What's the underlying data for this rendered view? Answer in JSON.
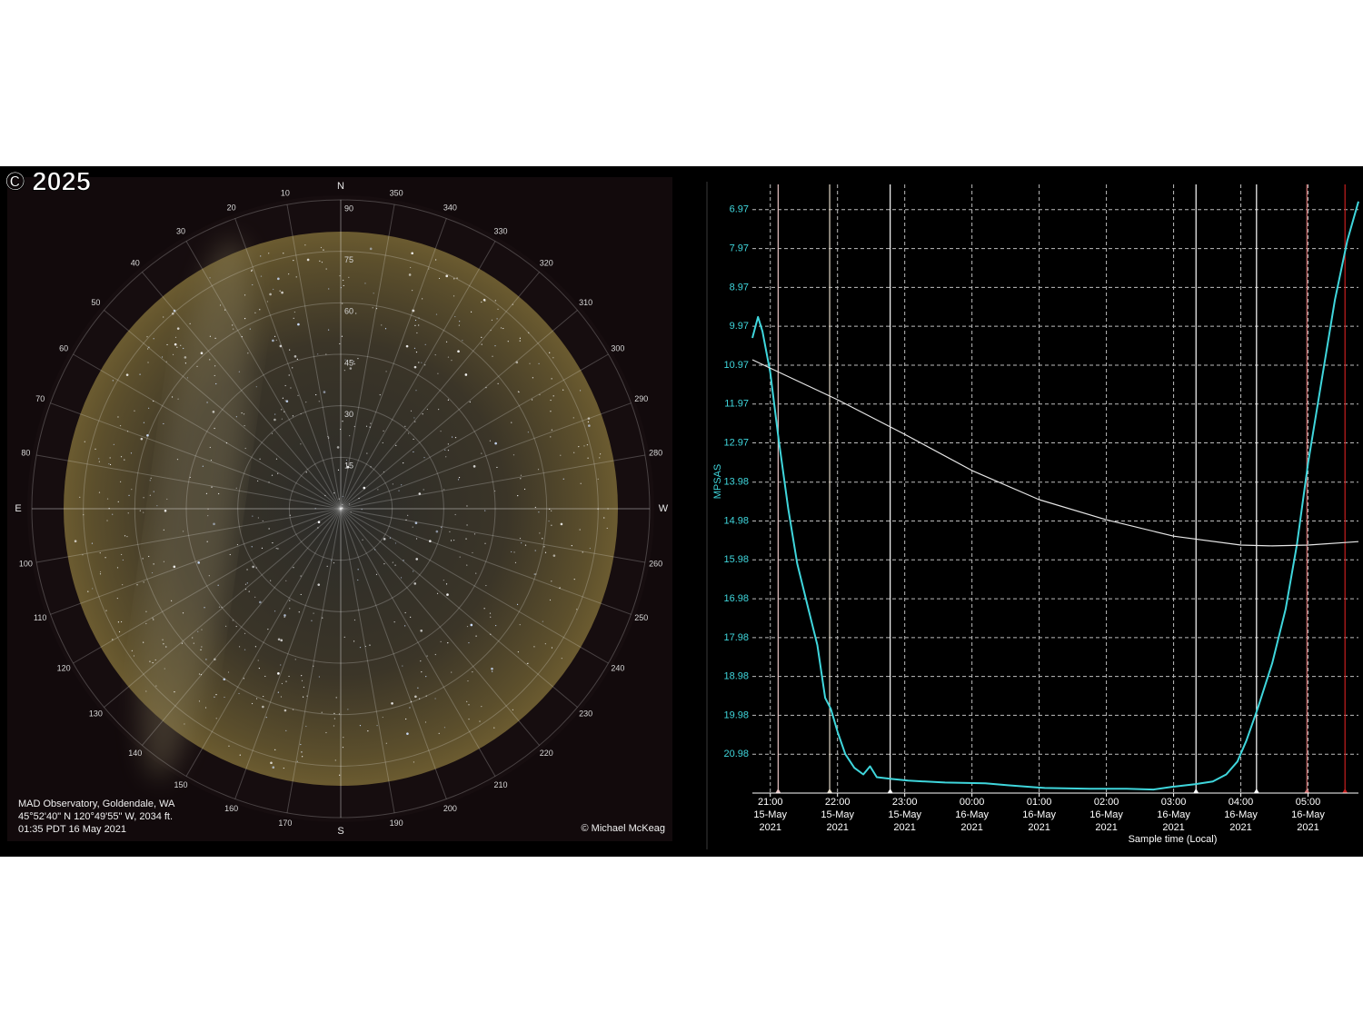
{
  "watermark": "© 2025",
  "sky_map": {
    "cardinals": [
      {
        "label": "N",
        "azimuth": 0
      },
      {
        "label": "E",
        "azimuth": 90
      },
      {
        "label": "S",
        "azimuth": 180
      },
      {
        "label": "W",
        "azimuth": 270
      }
    ],
    "azimuth_labels": [
      10,
      20,
      30,
      40,
      50,
      60,
      70,
      80,
      100,
      110,
      120,
      130,
      140,
      150,
      160,
      170,
      190,
      200,
      210,
      220,
      230,
      240,
      250,
      260,
      280,
      290,
      300,
      310,
      320,
      330,
      340,
      350
    ],
    "altitude_labels": [
      15,
      30,
      45,
      60,
      75,
      90
    ],
    "caption": [
      "MAD Observatory, Goldendale, WA",
      "45°52'40\" N 120°49'55\" W, 2034 ft.",
      "01:35 PDT 16 May 2021"
    ],
    "credit": "© Michael McKeag"
  },
  "chart_data": {
    "type": "line",
    "y_label": "MPSAS",
    "x_label": "Sample time (Local)",
    "ylim": [
      6.32,
      21.98
    ],
    "y_reversed": true,
    "yticks": [
      6.97,
      7.97,
      8.97,
      9.97,
      10.97,
      11.97,
      12.97,
      13.98,
      14.98,
      15.98,
      16.98,
      17.98,
      18.98,
      19.98,
      20.98
    ],
    "xlim": [
      "2021-05-15T20:44",
      "2021-05-16T05:45"
    ],
    "xticks": [
      {
        "value": "2021-05-15T21:00",
        "label": [
          "21:00",
          "15-May",
          "2021"
        ]
      },
      {
        "value": "2021-05-15T22:00",
        "label": [
          "22:00",
          "15-May",
          "2021"
        ]
      },
      {
        "value": "2021-05-15T23:00",
        "label": [
          "23:00",
          "15-May",
          "2021"
        ]
      },
      {
        "value": "2021-05-16T00:00",
        "label": [
          "00:00",
          "16-May",
          "2021"
        ]
      },
      {
        "value": "2021-05-16T01:00",
        "label": [
          "01:00",
          "16-May",
          "2021"
        ]
      },
      {
        "value": "2021-05-16T02:00",
        "label": [
          "02:00",
          "16-May",
          "2021"
        ]
      },
      {
        "value": "2021-05-16T03:00",
        "label": [
          "03:00",
          "16-May",
          "2021"
        ]
      },
      {
        "value": "2021-05-16T04:00",
        "label": [
          "04:00",
          "16-May",
          "2021"
        ]
      },
      {
        "value": "2021-05-16T05:00",
        "label": [
          "05:00",
          "16-May",
          "2021"
        ]
      }
    ],
    "grid": true,
    "series": [
      {
        "color": "#3fd6dc",
        "x": [
          "2021-05-15T20:44",
          "2021-05-15T20:49",
          "2021-05-15T20:53",
          "2021-05-15T21:00",
          "2021-05-15T21:07",
          "2021-05-15T21:16",
          "2021-05-15T21:24",
          "2021-05-15T21:34",
          "2021-05-15T21:42",
          "2021-05-15T21:49",
          "2021-05-15T21:54",
          "2021-05-15T22:00",
          "2021-05-15T22:07",
          "2021-05-15T22:15",
          "2021-05-15T22:23",
          "2021-05-15T22:29",
          "2021-05-15T22:35",
          "2021-05-15T22:47",
          "2021-05-15T23:03",
          "2021-05-15T23:36",
          "2021-05-16T00:12",
          "2021-05-16T00:32",
          "2021-05-16T01:05",
          "2021-05-16T01:45",
          "2021-05-16T02:18",
          "2021-05-16T02:42",
          "2021-05-16T02:58",
          "2021-05-16T03:19",
          "2021-05-16T03:35",
          "2021-05-16T03:47",
          "2021-05-16T03:57",
          "2021-05-16T04:05",
          "2021-05-16T04:15",
          "2021-05-16T04:28",
          "2021-05-16T04:40",
          "2021-05-16T04:50",
          "2021-05-16T05:00",
          "2021-05-16T05:12",
          "2021-05-16T05:24",
          "2021-05-16T05:35",
          "2021-05-16T05:45"
        ],
        "values": [
          10.27,
          9.73,
          10.1,
          11.16,
          12.79,
          14.67,
          16.07,
          17.24,
          18.17,
          19.53,
          19.81,
          20.4,
          20.98,
          21.33,
          21.5,
          21.29,
          21.57,
          21.61,
          21.66,
          21.71,
          21.73,
          21.78,
          21.85,
          21.87,
          21.87,
          21.89,
          21.82,
          21.75,
          21.68,
          21.5,
          21.17,
          20.63,
          19.81,
          18.64,
          17.24,
          15.6,
          13.5,
          11.39,
          9.29,
          7.77,
          6.76
        ]
      },
      {
        "color": "#e6e6e6",
        "x": [
          "2021-05-15T20:44",
          "2021-05-15T22:00",
          "2021-05-15T23:00",
          "2021-05-16T00:00",
          "2021-05-16T01:00",
          "2021-05-16T02:00",
          "2021-05-16T03:00",
          "2021-05-16T04:00",
          "2021-05-16T04:28",
          "2021-05-16T05:00",
          "2021-05-16T05:45"
        ],
        "values": [
          10.83,
          11.86,
          12.75,
          13.68,
          14.43,
          14.95,
          15.37,
          15.6,
          15.62,
          15.6,
          15.51
        ]
      }
    ],
    "markers": [
      {
        "x": "2021-05-15T21:07",
        "color": "#e8c4c4"
      },
      {
        "x": "2021-05-15T21:53",
        "color": "#e2d8c6"
      },
      {
        "x": "2021-05-15T22:47",
        "color": "#ffffff"
      },
      {
        "x": "2021-05-16T03:20",
        "color": "#ffffff"
      },
      {
        "x": "2021-05-16T04:14",
        "color": "#ffffff"
      },
      {
        "x": "2021-05-16T04:59",
        "color": "#d07070"
      },
      {
        "x": "2021-05-16T05:33",
        "color": "#c81e1e"
      }
    ]
  }
}
